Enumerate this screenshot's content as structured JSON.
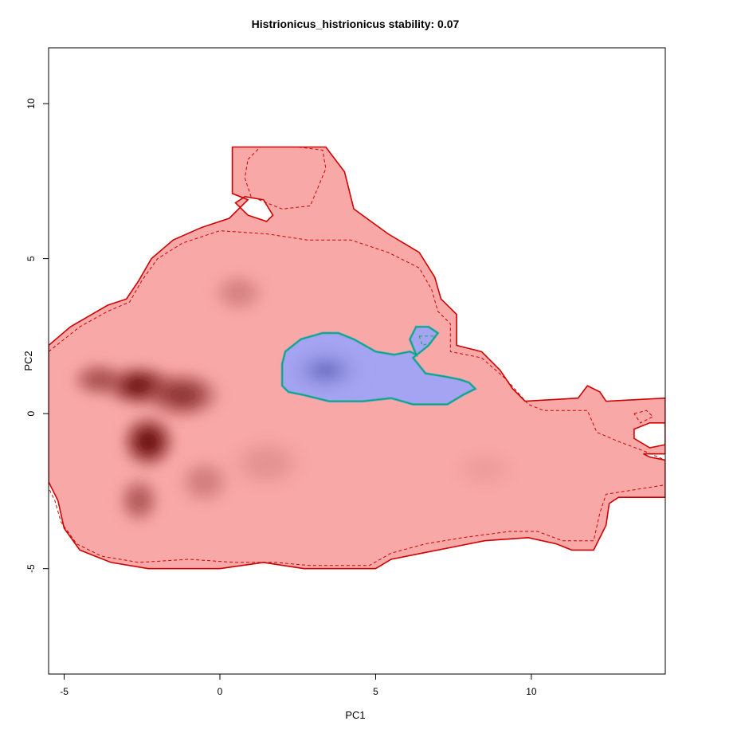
{
  "chart_data": {
    "type": "heatmap",
    "title": "Histrionicus_histrionicus stability: 0.07",
    "xlabel": "PC1",
    "ylabel": "PC2",
    "xlim": [
      -5.5,
      14.3
    ],
    "ylim": [
      -8.4,
      11.8
    ],
    "grid": false,
    "x_ticks": [
      -5,
      0,
      5,
      10
    ],
    "y_ticks": [
      -5,
      0,
      5,
      10
    ],
    "colors": {
      "background_niche": "#f9a8a8",
      "density_dark": "#5a0000",
      "density_mid": "#c46a6a",
      "niche_border": "#d10000",
      "overlap_fill": "#a4a4f2",
      "overlap_dark": "#6466b8",
      "overlap_border": "#00b050",
      "overlap_inner_border": "#5a9ee8",
      "axis": "#000000"
    },
    "background_region": {
      "outline": [
        [
          -5.5,
          2.2
        ],
        [
          -4.8,
          2.8
        ],
        [
          -3.6,
          3.5
        ],
        [
          -3.0,
          3.7
        ],
        [
          -2.6,
          4.3
        ],
        [
          -2.2,
          5.0
        ],
        [
          -1.5,
          5.6
        ],
        [
          -0.6,
          6.0
        ],
        [
          0.3,
          6.3
        ],
        [
          0.9,
          6.9
        ],
        [
          0.4,
          7.1
        ],
        [
          0.4,
          8.6
        ],
        [
          3.4,
          8.6
        ],
        [
          4.0,
          7.8
        ],
        [
          4.3,
          6.6
        ],
        [
          5.4,
          5.8
        ],
        [
          6.4,
          5.2
        ],
        [
          6.9,
          4.4
        ],
        [
          7.1,
          3.7
        ],
        [
          7.6,
          3.2
        ],
        [
          7.6,
          2.2
        ],
        [
          8.4,
          2.0
        ],
        [
          9.0,
          1.4
        ],
        [
          9.4,
          0.8
        ],
        [
          9.8,
          0.4
        ],
        [
          11.5,
          0.5
        ],
        [
          11.8,
          0.9
        ],
        [
          12.2,
          0.7
        ],
        [
          12.4,
          0.4
        ],
        [
          14.3,
          0.5
        ],
        [
          14.3,
          -1.3
        ],
        [
          13.6,
          -1.3
        ],
        [
          13.8,
          -1.4
        ],
        [
          14.3,
          -1.5
        ],
        [
          14.3,
          -2.7
        ],
        [
          12.8,
          -2.7
        ],
        [
          12.5,
          -2.9
        ],
        [
          12.4,
          -3.6
        ],
        [
          12.0,
          -4.4
        ],
        [
          11.3,
          -4.4
        ],
        [
          10.8,
          -4.2
        ],
        [
          9.9,
          -4.0
        ],
        [
          8.5,
          -4.1
        ],
        [
          7.5,
          -4.3
        ],
        [
          6.5,
          -4.5
        ],
        [
          5.5,
          -4.7
        ],
        [
          5.0,
          -5.0
        ],
        [
          2.7,
          -5.0
        ],
        [
          1.4,
          -4.8
        ],
        [
          0.0,
          -5.0
        ],
        [
          -2.3,
          -5.0
        ],
        [
          -3.5,
          -4.8
        ],
        [
          -4.5,
          -4.4
        ],
        [
          -5.0,
          -3.7
        ],
        [
          -5.2,
          -2.8
        ],
        [
          -5.5,
          -2.2
        ]
      ],
      "holes": [
        [
          [
            0.5,
            6.8
          ],
          [
            0.9,
            6.4
          ],
          [
            1.5,
            6.2
          ],
          [
            1.7,
            6.4
          ],
          [
            1.4,
            6.9
          ],
          [
            0.8,
            7.0
          ]
        ],
        [
          [
            13.3,
            -0.5
          ],
          [
            13.8,
            -0.3
          ],
          [
            14.3,
            -0.3
          ],
          [
            14.3,
            -1.0
          ],
          [
            13.8,
            -1.1
          ],
          [
            13.3,
            -0.8
          ]
        ]
      ],
      "contour_dashed": [
        [
          -5.5,
          2.0
        ],
        [
          -4.5,
          2.8
        ],
        [
          -3.6,
          3.3
        ],
        [
          -2.9,
          3.6
        ],
        [
          -2.5,
          4.3
        ],
        [
          -2.0,
          5.0
        ],
        [
          -1.2,
          5.5
        ],
        [
          0.0,
          5.9
        ],
        [
          1.5,
          5.8
        ],
        [
          2.8,
          5.6
        ],
        [
          4.2,
          5.6
        ],
        [
          5.4,
          5.2
        ],
        [
          6.4,
          4.7
        ],
        [
          6.8,
          4.0
        ],
        [
          7.0,
          3.3
        ],
        [
          7.4,
          2.9
        ],
        [
          7.4,
          2.0
        ],
        [
          8.4,
          1.8
        ],
        [
          9.2,
          1.1
        ],
        [
          9.9,
          0.3
        ],
        [
          10.4,
          0.1
        ],
        [
          11.8,
          0.1
        ],
        [
          12.1,
          -0.6
        ],
        [
          12.8,
          -0.9
        ],
        [
          13.6,
          -1.2
        ],
        [
          14.3,
          -1.5
        ],
        [
          14.3,
          -2.3
        ],
        [
          12.4,
          -2.6
        ],
        [
          12.2,
          -3.2
        ],
        [
          12.0,
          -4.1
        ],
        [
          11.0,
          -4.1
        ],
        [
          10.2,
          -3.8
        ],
        [
          9.3,
          -3.8
        ],
        [
          7.8,
          -4.0
        ],
        [
          6.6,
          -4.2
        ],
        [
          5.5,
          -4.5
        ],
        [
          4.8,
          -4.9
        ],
        [
          2.9,
          -4.9
        ],
        [
          1.8,
          -4.8
        ],
        [
          0.5,
          -4.8
        ],
        [
          -1.0,
          -4.7
        ],
        [
          -2.6,
          -4.8
        ],
        [
          -3.8,
          -4.6
        ],
        [
          -4.6,
          -4.2
        ],
        [
          -5.1,
          -3.5
        ],
        [
          -5.3,
          -2.8
        ],
        [
          -5.5,
          -2.4
        ]
      ],
      "contour_dashed_top": [
        [
          0.9,
          8.2
        ],
        [
          1.3,
          8.6
        ],
        [
          2.5,
          8.6
        ],
        [
          3.3,
          8.5
        ],
        [
          3.4,
          7.9
        ],
        [
          2.9,
          6.7
        ],
        [
          2.0,
          6.6
        ],
        [
          1.0,
          7.0
        ],
        [
          0.8,
          7.6
        ],
        [
          0.9,
          8.2
        ]
      ],
      "contour_dashed_right": [
        [
          13.3,
          -0.0
        ],
        [
          13.7,
          0.1
        ],
        [
          13.9,
          -0.1
        ],
        [
          13.5,
          -0.3
        ],
        [
          13.3,
          -0.0
        ]
      ]
    },
    "density_blobs": [
      {
        "cx": -2.3,
        "cy": -0.9,
        "rx": 1.0,
        "ry": 1.0,
        "intensity": 1.0
      },
      {
        "cx": -2.6,
        "cy": 0.9,
        "rx": 1.3,
        "ry": 0.8,
        "intensity": 0.95
      },
      {
        "cx": -1.2,
        "cy": 0.6,
        "rx": 1.4,
        "ry": 0.9,
        "intensity": 0.75
      },
      {
        "cx": -3.9,
        "cy": 1.1,
        "rx": 1.0,
        "ry": 0.7,
        "intensity": 0.55
      },
      {
        "cx": -2.6,
        "cy": -2.8,
        "rx": 0.8,
        "ry": 0.9,
        "intensity": 0.5
      },
      {
        "cx": 0.6,
        "cy": 3.9,
        "rx": 1.0,
        "ry": 0.8,
        "intensity": 0.25
      },
      {
        "cx": -0.5,
        "cy": -2.2,
        "rx": 1.0,
        "ry": 0.9,
        "intensity": 0.28
      },
      {
        "cx": 1.5,
        "cy": -1.6,
        "rx": 1.4,
        "ry": 1.0,
        "intensity": 0.15
      },
      {
        "cx": 8.5,
        "cy": -1.8,
        "rx": 1.2,
        "ry": 0.8,
        "intensity": 0.08
      }
    ],
    "overlap_region": {
      "outline": [
        [
          2.0,
          1.6
        ],
        [
          2.1,
          2.0
        ],
        [
          2.6,
          2.4
        ],
        [
          3.3,
          2.6
        ],
        [
          3.8,
          2.6
        ],
        [
          4.3,
          2.4
        ],
        [
          5.0,
          2.0
        ],
        [
          5.6,
          1.9
        ],
        [
          6.1,
          2.0
        ],
        [
          6.3,
          1.9
        ],
        [
          6.1,
          2.4
        ],
        [
          6.3,
          2.8
        ],
        [
          6.7,
          2.8
        ],
        [
          7.0,
          2.6
        ],
        [
          6.7,
          2.2
        ],
        [
          6.2,
          1.8
        ],
        [
          6.6,
          1.3
        ],
        [
          7.2,
          1.2
        ],
        [
          7.7,
          1.1
        ],
        [
          8.0,
          1.0
        ],
        [
          8.2,
          0.8
        ],
        [
          7.8,
          0.6
        ],
        [
          7.3,
          0.3
        ],
        [
          6.2,
          0.3
        ],
        [
          5.5,
          0.5
        ],
        [
          4.6,
          0.4
        ],
        [
          3.5,
          0.4
        ],
        [
          2.7,
          0.6
        ],
        [
          2.2,
          0.7
        ],
        [
          2.0,
          0.9
        ]
      ],
      "inner_contour": [
        [
          6.4,
          2.5
        ],
        [
          6.7,
          2.5
        ],
        [
          6.9,
          2.5
        ],
        [
          6.8,
          2.3
        ],
        [
          6.5,
          2.2
        ],
        [
          6.4,
          2.5
        ]
      ],
      "dark_center": {
        "cx": 3.4,
        "cy": 1.4,
        "rx": 1.4,
        "ry": 0.9
      }
    }
  }
}
